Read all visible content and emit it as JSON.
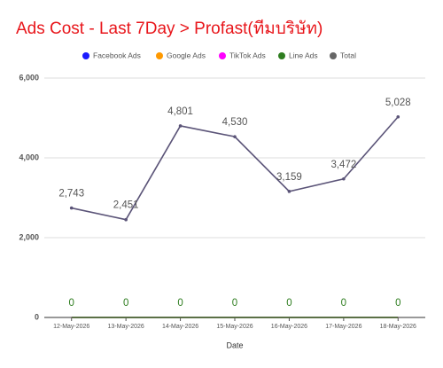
{
  "chart_data": {
    "type": "line",
    "title": "Ads Cost - Last 7Day > Profast(ทีมบริษัท)",
    "x_label": "Date",
    "categories": [
      "12-May-2026",
      "13-May-2026",
      "14-May-2026",
      "15-May-2026",
      "16-May-2026",
      "17-May-2026",
      "18-May-2026"
    ],
    "series": [
      {
        "name": "Facebook Ads",
        "color": "#1a1aff",
        "values": [
          0,
          0,
          0,
          0,
          0,
          0,
          0
        ]
      },
      {
        "name": "Google Ads",
        "color": "#ff9900",
        "values": [
          0,
          0,
          0,
          0,
          0,
          0,
          0
        ]
      },
      {
        "name": "TikTok Ads",
        "color": "#ff00ff",
        "values": [
          0,
          0,
          0,
          0,
          0,
          0,
          0
        ]
      },
      {
        "name": "Line Ads",
        "color": "#2e7d1f",
        "values": [
          0,
          0,
          0,
          0,
          0,
          0,
          0
        ],
        "value_labels": [
          "0",
          "0",
          "0",
          "0",
          "0",
          "0",
          "0"
        ]
      },
      {
        "name": "Total",
        "color": "#5b5478",
        "legend_color": "#666666",
        "values": [
          2743,
          2451,
          4801,
          4530,
          3159,
          3472,
          5028
        ],
        "value_labels": [
          "2,743",
          "2,451",
          "4,801",
          "4,530",
          "3,159",
          "3,472",
          "5,028"
        ]
      }
    ],
    "ylim": [
      0,
      6000
    ],
    "yticks": [
      0,
      {
        "value": 2000,
        "label": "2,000"
      },
      {
        "value": 4000,
        "label": "4,000"
      },
      {
        "value": 6000,
        "label": "6,000"
      }
    ],
    "grid": true,
    "legend": "top"
  }
}
